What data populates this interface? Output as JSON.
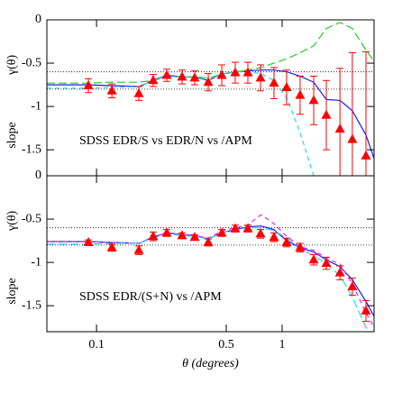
{
  "chart_data": [
    {
      "type": "line",
      "ylabel": "γ(θ)",
      "ylabel2": "slope",
      "annotation": "SDSS EDR/S vs EDR/N vs /APM",
      "log_x": true,
      "xlim": [
        0.054,
        3.13
      ],
      "ylim": [
        -1.8,
        0
      ],
      "yticks": [
        0,
        -0.5,
        -1,
        -1.5
      ],
      "hlines": [
        -0.6,
        -0.8
      ],
      "series": [
        {
          "color": "#1a1aff",
          "dash": "solid",
          "x": [
            0.054,
            0.09,
            0.12,
            0.17,
            0.2,
            0.24,
            0.29,
            0.34,
            0.4,
            0.47,
            0.56,
            0.65,
            0.77,
            0.9,
            1.06,
            1.25,
            1.48,
            1.73,
            2.05,
            2.39,
            2.83,
            3.13
          ],
          "values": [
            -0.75,
            -0.75,
            -0.76,
            -0.77,
            -0.7,
            -0.64,
            -0.66,
            -0.66,
            -0.7,
            -0.63,
            -0.6,
            -0.59,
            -0.58,
            -0.58,
            -0.6,
            -0.65,
            -0.72,
            -0.92,
            -0.93,
            -1.05,
            -1.33,
            -1.6
          ]
        },
        {
          "color": "#22cc22",
          "dash": "long",
          "x": [
            0.054,
            0.09,
            0.12,
            0.17,
            0.2,
            0.24,
            0.29,
            0.34,
            0.4,
            0.47,
            0.56,
            0.65,
            0.77,
            0.9,
            1.06,
            1.25,
            1.48,
            1.73,
            2.05,
            2.39,
            2.83,
            3.13
          ],
          "values": [
            -0.73,
            -0.73,
            -0.72,
            -0.72,
            -0.7,
            -0.66,
            -0.66,
            -0.66,
            -0.67,
            -0.63,
            -0.6,
            -0.58,
            -0.55,
            -0.5,
            -0.45,
            -0.38,
            -0.3,
            -0.1,
            -0.03,
            -0.1,
            -0.35,
            -0.48
          ]
        },
        {
          "color": "#22dddd",
          "dash": "short",
          "x": [
            0.054,
            0.09,
            0.12,
            0.17,
            0.2,
            0.24,
            0.29,
            0.34,
            0.4,
            0.47,
            0.56,
            0.65,
            0.77,
            0.9,
            1.06,
            1.25,
            1.48
          ],
          "values": [
            -0.79,
            -0.79,
            -0.78,
            -0.77,
            -0.7,
            -0.65,
            -0.66,
            -0.67,
            -0.7,
            -0.63,
            -0.6,
            -0.6,
            -0.62,
            -0.7,
            -0.9,
            -1.3,
            -1.8
          ]
        },
        {
          "color": "#ff0000",
          "marker": "triangle",
          "x": [
            0.0904,
            0.121,
            0.169,
            0.202,
            0.239,
            0.289,
            0.338,
            0.4,
            0.473,
            0.559,
            0.654,
            0.765,
            0.904,
            1.057,
            1.25,
            1.48,
            1.73,
            2.05,
            2.39,
            2.83
          ],
          "values": [
            -0.76,
            -0.82,
            -0.85,
            -0.7,
            -0.64,
            -0.66,
            -0.67,
            -0.72,
            -0.64,
            -0.61,
            -0.61,
            -0.67,
            -0.73,
            -0.78,
            -0.87,
            -0.93,
            -1.1,
            -1.26,
            -1.38,
            -1.57
          ],
          "errors": [
            0.08,
            0.08,
            0.08,
            0.07,
            0.07,
            0.08,
            0.08,
            0.1,
            0.12,
            0.12,
            0.12,
            0.15,
            0.18,
            0.2,
            0.22,
            0.28,
            0.4,
            0.7,
            1.0,
            1.2
          ]
        }
      ]
    },
    {
      "type": "line",
      "ylabel": "γ(θ)",
      "ylabel2": "slope",
      "annotation": "SDSS EDR/(S+N) vs /APM",
      "xlabel": "θ  (degrees)",
      "log_x": true,
      "xlim": [
        0.054,
        3.13
      ],
      "ylim": [
        -1.8,
        0
      ],
      "xticks": [
        0.1,
        0.5,
        1
      ],
      "yticks": [
        0,
        -0.5,
        -1,
        -1.5
      ],
      "hlines": [
        -0.6,
        -0.8
      ],
      "series": [
        {
          "color": "#1a1aff",
          "dash": "solid",
          "x": [
            0.054,
            0.09,
            0.12,
            0.17,
            0.2,
            0.24,
            0.29,
            0.34,
            0.4,
            0.47,
            0.56,
            0.65,
            0.77,
            0.9,
            1.06,
            1.25,
            1.48,
            1.73,
            2.05,
            2.39,
            2.83,
            3.13
          ],
          "values": [
            -0.76,
            -0.76,
            -0.77,
            -0.78,
            -0.71,
            -0.66,
            -0.68,
            -0.69,
            -0.73,
            -0.66,
            -0.62,
            -0.59,
            -0.58,
            -0.62,
            -0.75,
            -0.83,
            -0.88,
            -0.97,
            -1.05,
            -1.2,
            -1.45,
            -1.62
          ]
        },
        {
          "color": "#ee22ee",
          "dash": "short",
          "x": [
            0.054,
            0.09,
            0.12,
            0.17,
            0.2,
            0.24,
            0.29,
            0.34,
            0.4,
            0.47,
            0.56,
            0.65,
            0.77,
            0.9,
            1.06,
            1.25,
            1.48,
            1.73,
            2.05,
            2.39,
            2.83,
            3.13
          ],
          "values": [
            -0.76,
            -0.76,
            -0.77,
            -0.78,
            -0.71,
            -0.66,
            -0.68,
            -0.69,
            -0.72,
            -0.64,
            -0.6,
            -0.57,
            -0.45,
            -0.55,
            -0.7,
            -0.82,
            -0.86,
            -0.95,
            -1.02,
            -1.25,
            -1.58,
            -1.75
          ]
        },
        {
          "color": "#22dddd",
          "dash": "long",
          "x": [
            0.054,
            0.09,
            0.12,
            0.17,
            0.2,
            0.24,
            0.29,
            0.34,
            0.4,
            0.47,
            0.56,
            0.65,
            0.77,
            0.9,
            1.06,
            1.25,
            1.48,
            1.73,
            2.05,
            2.39,
            2.83,
            3.13
          ],
          "values": [
            -0.79,
            -0.79,
            -0.78,
            -0.78,
            -0.72,
            -0.67,
            -0.69,
            -0.7,
            -0.73,
            -0.66,
            -0.62,
            -0.6,
            -0.6,
            -0.63,
            -0.72,
            -0.85,
            -0.92,
            -1.02,
            -1.15,
            -1.4,
            -1.75,
            -1.85
          ]
        },
        {
          "color": "#ff0000",
          "marker": "triangle",
          "x": [
            0.0904,
            0.121,
            0.169,
            0.202,
            0.239,
            0.289,
            0.338,
            0.4,
            0.473,
            0.559,
            0.654,
            0.765,
            0.904,
            1.057,
            1.25,
            1.48,
            1.73,
            2.05,
            2.39,
            2.83
          ],
          "values": [
            -0.77,
            -0.83,
            -0.86,
            -0.7,
            -0.66,
            -0.69,
            -0.71,
            -0.77,
            -0.66,
            -0.61,
            -0.61,
            -0.67,
            -0.71,
            -0.77,
            -0.83,
            -0.97,
            -1.01,
            -1.12,
            -1.28,
            -1.56
          ],
          "errors": [
            0.03,
            0.04,
            0.05,
            0.05,
            0.04,
            0.03,
            0.03,
            0.04,
            0.04,
            0.04,
            0.04,
            0.05,
            0.05,
            0.05,
            0.05,
            0.06,
            0.07,
            0.08,
            0.1,
            0.12
          ]
        }
      ]
    }
  ]
}
